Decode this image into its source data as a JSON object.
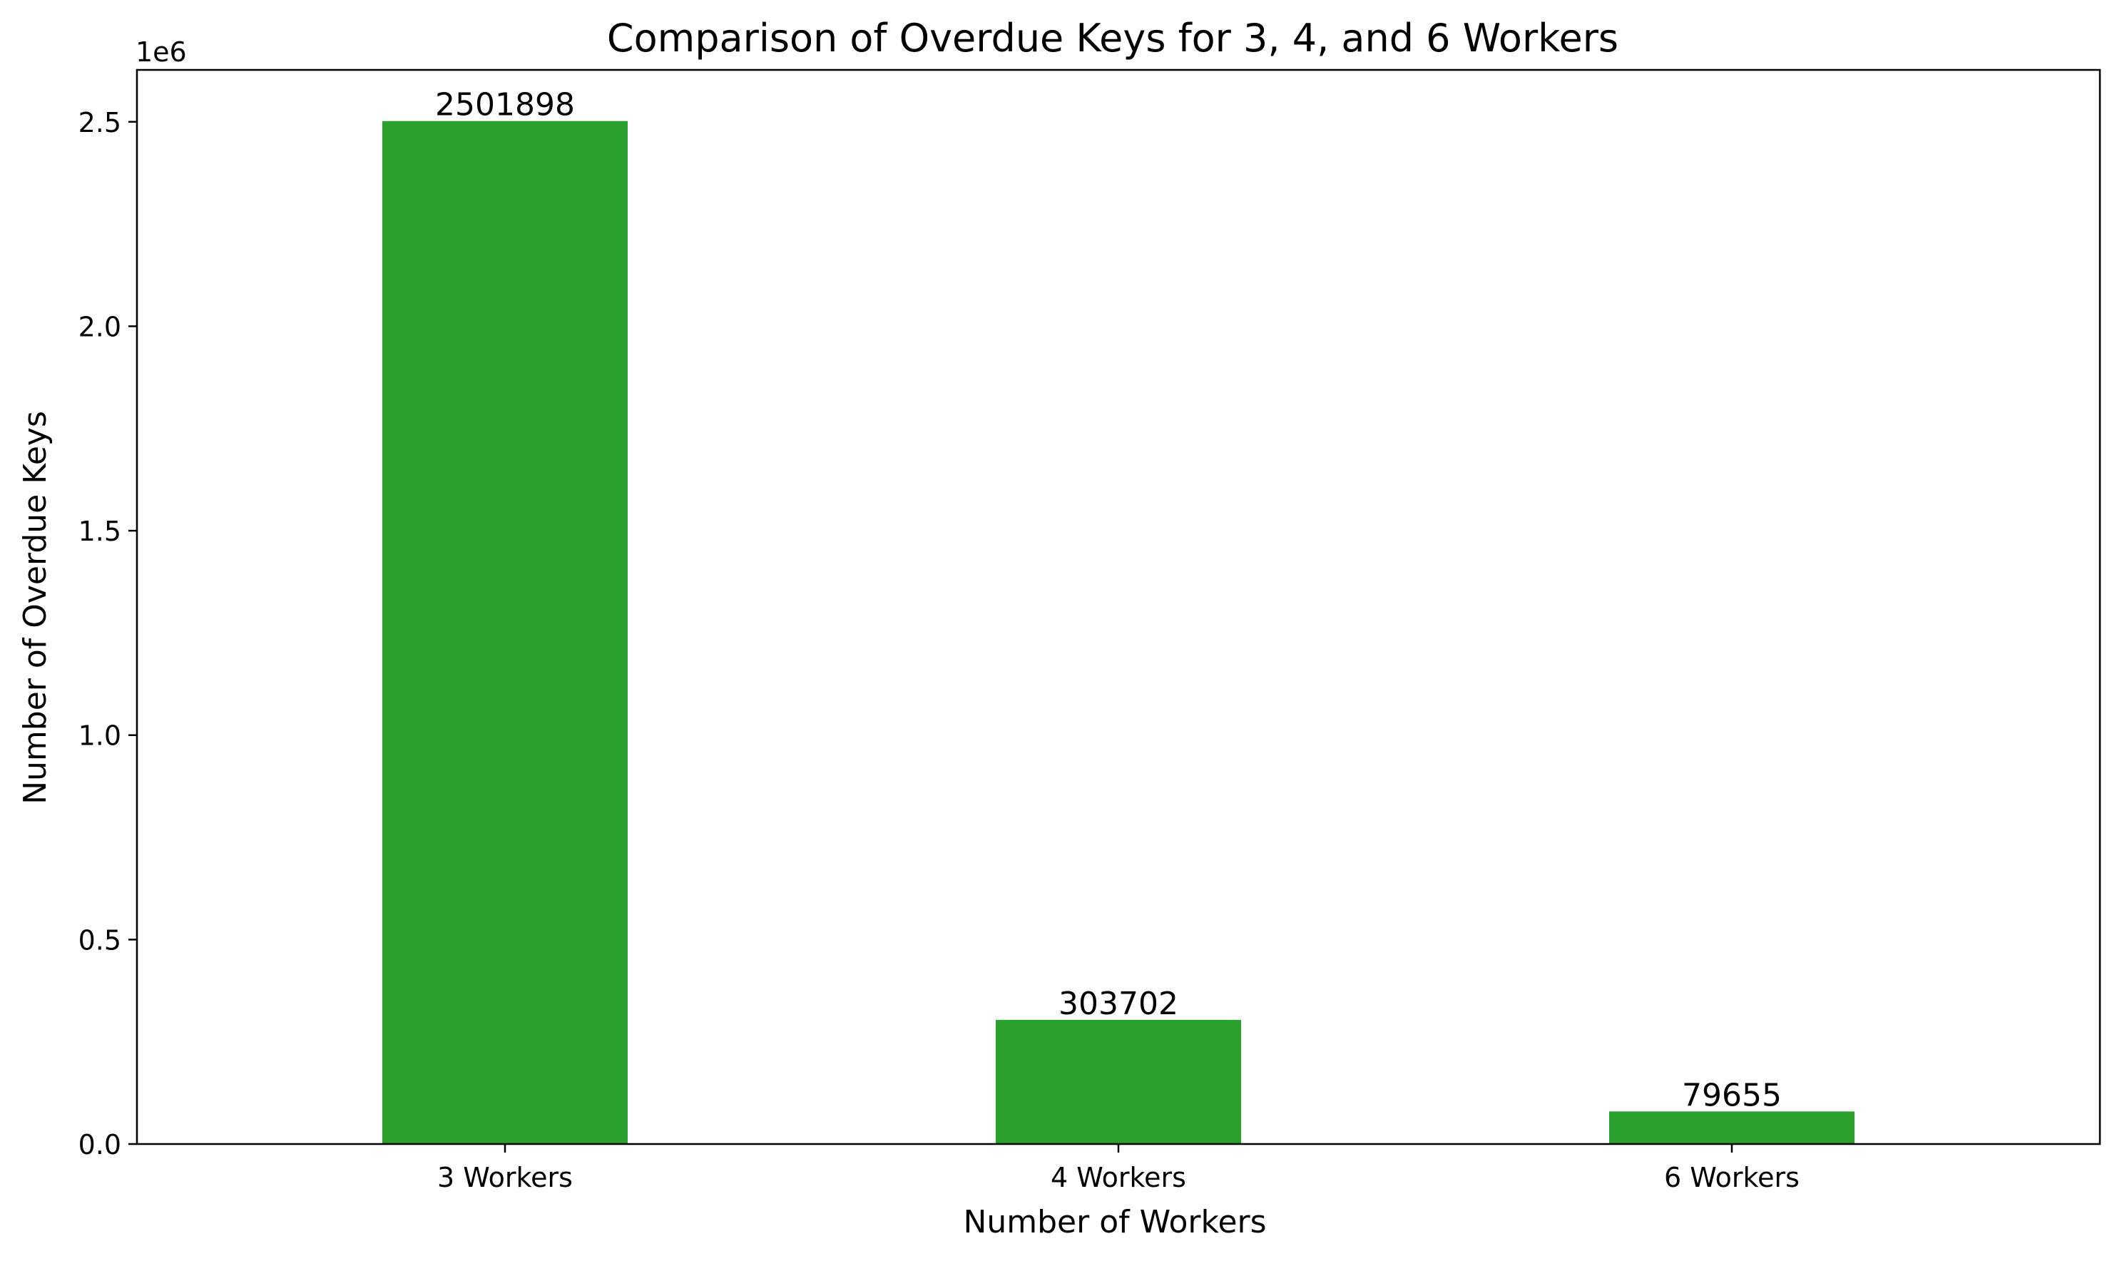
{
  "chart_data": {
    "type": "bar",
    "title": "Comparison of Overdue Keys for 3, 4, and 6 Workers",
    "xlabel": "Number of Workers",
    "ylabel": "Number of Overdue Keys",
    "offset_label": "1e6",
    "categories": [
      "3 Workers",
      "4 Workers",
      "6 Workers"
    ],
    "values": [
      2501898,
      303702,
      79655
    ],
    "data_labels": [
      "2501898",
      "303702",
      "79655"
    ],
    "ylim": [
      0,
      2626993
    ],
    "yticks": [
      0,
      500000,
      1000000,
      1500000,
      2000000,
      2500000
    ],
    "ytick_labels": [
      "0.0",
      "0.5",
      "1.0",
      "1.5",
      "2.0",
      "2.5"
    ],
    "bar_color": "#2ca02c",
    "grid": false,
    "legend": "none"
  }
}
